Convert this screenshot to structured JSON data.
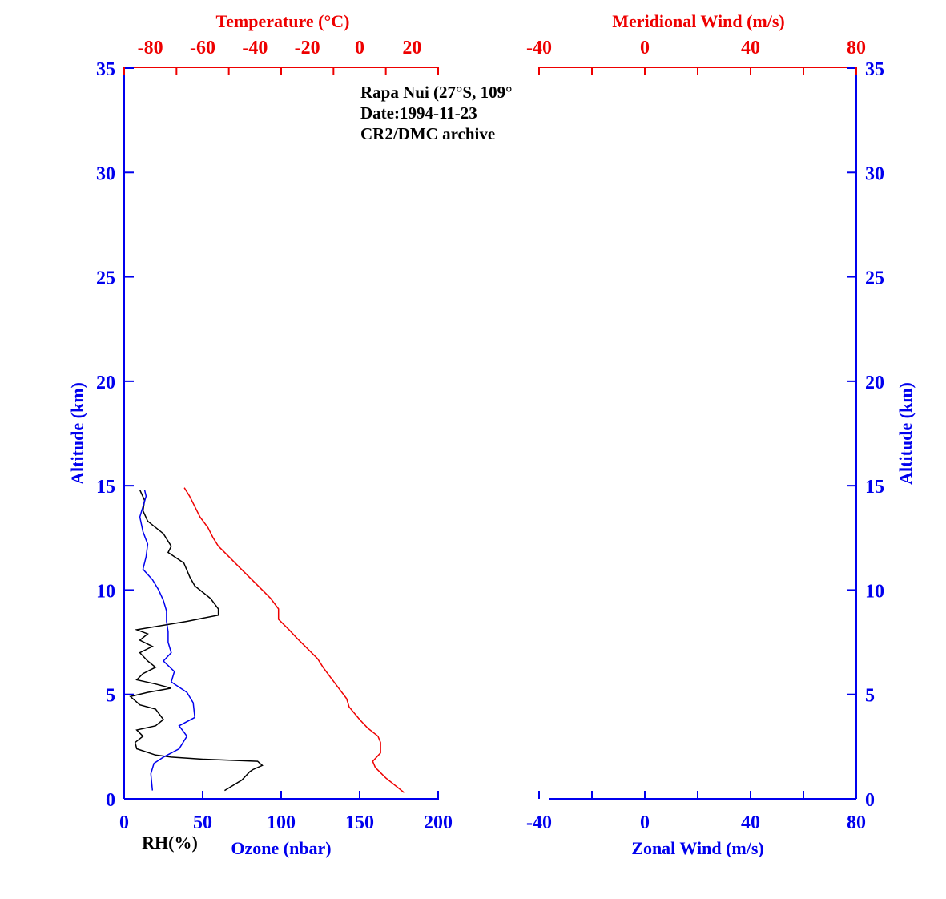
{
  "colors": {
    "blue": "#0000ee",
    "red": "#ee0000",
    "black": "#000000"
  },
  "chart_data": [
    {
      "type": "line",
      "panel": "left",
      "annotations": [
        "Rapa Nui (27°S, 109°",
        "Date:1994-11-23",
        "CR2/DMC archive"
      ],
      "y_axis": {
        "label": "Altitude (km)",
        "range": [
          0,
          35
        ],
        "ticks": [
          0,
          5,
          10,
          15,
          20,
          25,
          30,
          35
        ]
      },
      "x_bottom": {
        "label": "Ozone (nbar)",
        "range": [
          0,
          200
        ],
        "ticks": [
          0,
          50,
          100,
          150,
          200
        ]
      },
      "x_bottom_secondary_label": "RH(%)",
      "x_top": {
        "label": "Temperature (°C)",
        "range": [
          -90,
          30
        ],
        "ticks": [
          -80,
          -60,
          -40,
          -20,
          0,
          20
        ]
      },
      "series": [
        {
          "name": "RH(%)",
          "color": "#000000",
          "x_units": "RH (%)",
          "points": [
            [
              64,
              0.4
            ],
            [
              75,
              0.9
            ],
            [
              80,
              1.3
            ],
            [
              82,
              1.4
            ],
            [
              88,
              1.6
            ],
            [
              85,
              1.8
            ],
            [
              50,
              1.9
            ],
            [
              30,
              2.0
            ],
            [
              20,
              2.1
            ],
            [
              8,
              2.4
            ],
            [
              7,
              2.7
            ],
            [
              12,
              3.0
            ],
            [
              8,
              3.3
            ],
            [
              20,
              3.5
            ],
            [
              25,
              3.8
            ],
            [
              20,
              4.3
            ],
            [
              10,
              4.5
            ],
            [
              4,
              4.9
            ],
            [
              15,
              5.1
            ],
            [
              30,
              5.3
            ],
            [
              20,
              5.5
            ],
            [
              8,
              5.7
            ],
            [
              12,
              6.0
            ],
            [
              20,
              6.3
            ],
            [
              15,
              6.6
            ],
            [
              10,
              7.0
            ],
            [
              18,
              7.3
            ],
            [
              10,
              7.6
            ],
            [
              15,
              7.9
            ],
            [
              8,
              8.1
            ],
            [
              40,
              8.5
            ],
            [
              60,
              8.8
            ],
            [
              60,
              9.1
            ],
            [
              55,
              9.6
            ],
            [
              45,
              10.2
            ],
            [
              42,
              10.6
            ],
            [
              38,
              11.3
            ],
            [
              28,
              11.8
            ],
            [
              30,
              12.1
            ],
            [
              25,
              12.7
            ],
            [
              15,
              13.3
            ],
            [
              12,
              13.8
            ],
            [
              13,
              14.3
            ],
            [
              10,
              14.8
            ]
          ]
        },
        {
          "name": "Ozone (nbar)",
          "color": "#0000ee",
          "x_units": "nbar",
          "points": [
            [
              18,
              0.4
            ],
            [
              17,
              1.2
            ],
            [
              19,
              1.7
            ],
            [
              25,
              2.0
            ],
            [
              35,
              2.4
            ],
            [
              40,
              3.0
            ],
            [
              35,
              3.5
            ],
            [
              45,
              3.9
            ],
            [
              44,
              4.6
            ],
            [
              40,
              5.1
            ],
            [
              30,
              5.6
            ],
            [
              32,
              6.1
            ],
            [
              25,
              6.6
            ],
            [
              30,
              7.0
            ],
            [
              28,
              7.5
            ],
            [
              28,
              8.0
            ],
            [
              27,
              8.5
            ],
            [
              27,
              9.0
            ],
            [
              25,
              9.5
            ],
            [
              22,
              10.0
            ],
            [
              18,
              10.5
            ],
            [
              12,
              11.0
            ],
            [
              14,
              11.6
            ],
            [
              15,
              12.2
            ],
            [
              12,
              12.8
            ],
            [
              10,
              13.5
            ],
            [
              12,
              14.0
            ],
            [
              14,
              14.5
            ],
            [
              13,
              14.8
            ]
          ]
        },
        {
          "name": "Temperature (°C)",
          "color": "#ee0000",
          "x_units": "°C",
          "points": [
            [
              17,
              0.3
            ],
            [
              10,
              1.0
            ],
            [
              6,
              1.5
            ],
            [
              5,
              1.8
            ],
            [
              8,
              2.2
            ],
            [
              8,
              2.7
            ],
            [
              7,
              3.0
            ],
            [
              3,
              3.4
            ],
            [
              0,
              3.8
            ],
            [
              -4,
              4.4
            ],
            [
              -5,
              4.8
            ],
            [
              -8,
              5.3
            ],
            [
              -11,
              5.8
            ],
            [
              -14,
              6.3
            ],
            [
              -16,
              6.7
            ],
            [
              -20,
              7.2
            ],
            [
              -24,
              7.7
            ],
            [
              -27,
              8.1
            ],
            [
              -31,
              8.6
            ],
            [
              -31,
              9.1
            ],
            [
              -34,
              9.6
            ],
            [
              -38,
              10.1
            ],
            [
              -42,
              10.6
            ],
            [
              -46,
              11.1
            ],
            [
              -50,
              11.6
            ],
            [
              -54,
              12.1
            ],
            [
              -56,
              12.5
            ],
            [
              -58,
              13.0
            ],
            [
              -61,
              13.5
            ],
            [
              -63,
              14.0
            ],
            [
              -65,
              14.5
            ],
            [
              -67,
              14.9
            ]
          ]
        }
      ]
    },
    {
      "type": "line",
      "panel": "right",
      "y_axis": {
        "label": "Altitude (km)",
        "range": [
          0,
          35
        ],
        "ticks": [
          0,
          5,
          10,
          15,
          20,
          25,
          30,
          35
        ]
      },
      "x_bottom": {
        "label": "Zonal Wind (m/s)",
        "range": [
          -40,
          80
        ],
        "ticks": [
          -40,
          0,
          40,
          80
        ]
      },
      "x_top": {
        "label": "Meridional Wind (m/s)",
        "range": [
          -40,
          80
        ],
        "ticks": [
          -40,
          0,
          40,
          80
        ]
      },
      "series": []
    }
  ]
}
